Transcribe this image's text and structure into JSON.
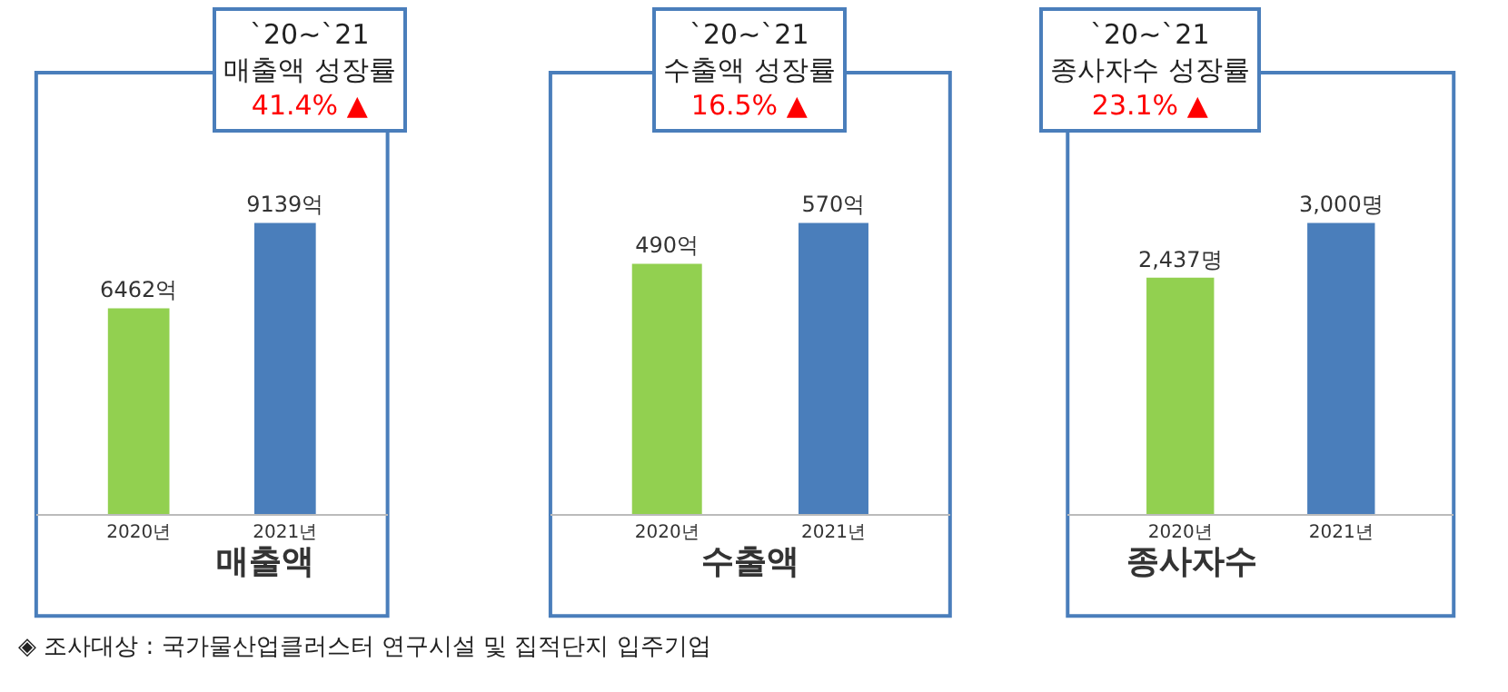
{
  "chart_data": [
    {
      "type": "bar",
      "title": "`20~`21 매출액 성장률",
      "subtitle": "41.4% ▲",
      "xlabel": "매출액",
      "categories": [
        "2020년",
        "2021년"
      ],
      "values": [
        6462,
        9139
      ],
      "colors": [
        "#92d050",
        "#4a7ebb"
      ],
      "value_labels": [
        "6462억",
        "9139억"
      ],
      "annotations": [
        "◈ 조사대상 : 국가물산업클러스터 연구시설 및 집적단지 입주기업"
      ]
    },
    {
      "type": "bar",
      "title": "`20~`21 수출액 성장률",
      "subtitle": "16.5% ▲",
      "xlabel": "수출액",
      "categories": [
        "2020년",
        "2021년"
      ],
      "values": [
        490,
        570
      ],
      "colors": [
        "#92d050",
        "#4a7ebb"
      ],
      "value_labels": [
        "490억",
        "570억"
      ]
    },
    {
      "type": "bar",
      "title": "`20~`21 종사자수 성장률",
      "subtitle": "23.1% ▲",
      "xlabel": "종사자수",
      "categories": [
        "2020년",
        "2021년"
      ],
      "values": [
        2437,
        3000
      ],
      "colors": [
        "#92d050",
        "#4a7ebb"
      ],
      "value_labels": [
        "2,437명",
        "3,000명"
      ]
    }
  ]
}
